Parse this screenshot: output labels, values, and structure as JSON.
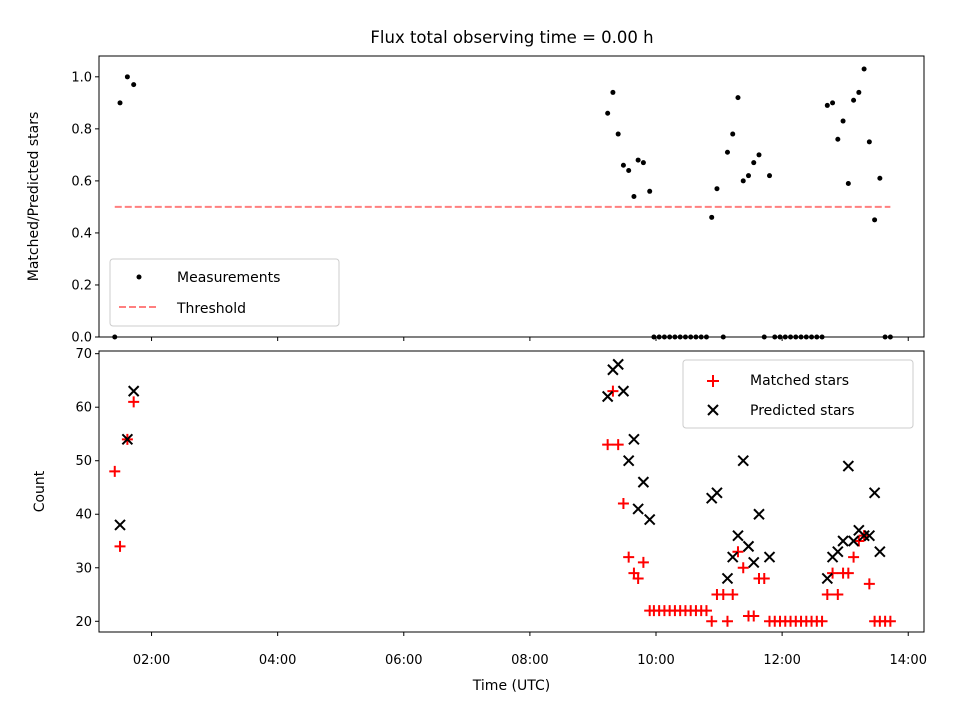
{
  "chart_data": [
    {
      "type": "scatter",
      "title": "Flux total observing time = 0.00 h",
      "xlabel": "",
      "ylabel": "Matched/Predicted stars",
      "xlim": [
        "01:10",
        "14:15"
      ],
      "ylim": [
        0,
        1.08
      ],
      "yticks": [
        "0.0",
        "0.2",
        "0.4",
        "0.6",
        "0.8",
        "1.0"
      ],
      "grid": false,
      "legend": "lower-left",
      "series": [
        {
          "name": "Measurements",
          "marker": "dot",
          "color": "#000000",
          "points": [
            [
              "01:25",
              0.0
            ],
            [
              "01:30",
              0.9
            ],
            [
              "01:37",
              1.0
            ],
            [
              "01:43",
              0.97
            ],
            [
              "09:14",
              0.86
            ],
            [
              "09:19",
              0.94
            ],
            [
              "09:24",
              0.78
            ],
            [
              "09:29",
              0.66
            ],
            [
              "09:34",
              0.64
            ],
            [
              "09:39",
              0.54
            ],
            [
              "09:43",
              0.68
            ],
            [
              "09:48",
              0.67
            ],
            [
              "09:54",
              0.56
            ],
            [
              "09:58",
              0.0
            ],
            [
              "10:03",
              0.0
            ],
            [
              "10:08",
              0.0
            ],
            [
              "10:13",
              0.0
            ],
            [
              "10:18",
              0.0
            ],
            [
              "10:23",
              0.0
            ],
            [
              "10:28",
              0.0
            ],
            [
              "10:33",
              0.0
            ],
            [
              "10:38",
              0.0
            ],
            [
              "10:43",
              0.0
            ],
            [
              "10:48",
              0.0
            ],
            [
              "10:53",
              0.46
            ],
            [
              "10:58",
              0.57
            ],
            [
              "11:04",
              0.0
            ],
            [
              "11:08",
              0.71
            ],
            [
              "11:13",
              0.78
            ],
            [
              "11:18",
              0.92
            ],
            [
              "11:23",
              0.6
            ],
            [
              "11:28",
              0.62
            ],
            [
              "11:33",
              0.67
            ],
            [
              "11:38",
              0.7
            ],
            [
              "11:43",
              0.0
            ],
            [
              "11:48",
              0.62
            ],
            [
              "11:53",
              0.0
            ],
            [
              "11:58",
              0.0
            ],
            [
              "12:03",
              0.0
            ],
            [
              "12:08",
              0.0
            ],
            [
              "12:13",
              0.0
            ],
            [
              "12:18",
              0.0
            ],
            [
              "12:23",
              0.0
            ],
            [
              "12:28",
              0.0
            ],
            [
              "12:33",
              0.0
            ],
            [
              "12:38",
              0.0
            ],
            [
              "12:43",
              0.89
            ],
            [
              "12:48",
              0.9
            ],
            [
              "12:53",
              0.76
            ],
            [
              "12:58",
              0.83
            ],
            [
              "13:03",
              0.59
            ],
            [
              "13:08",
              0.91
            ],
            [
              "13:13",
              0.94
            ],
            [
              "13:18",
              1.03
            ],
            [
              "13:23",
              0.75
            ],
            [
              "13:28",
              0.45
            ],
            [
              "13:33",
              0.61
            ],
            [
              "13:38",
              0.0
            ],
            [
              "13:43",
              0.0
            ]
          ]
        },
        {
          "name": "Threshold",
          "type": "line",
          "style": "dashed",
          "color": "#ff7f7f",
          "x": [
            "01:25",
            "13:43"
          ],
          "values": [
            0.5,
            0.5
          ]
        }
      ]
    },
    {
      "type": "scatter",
      "title": "",
      "xlabel": "Time (UTC)",
      "ylabel": "Count",
      "xlim": [
        "01:10",
        "14:15"
      ],
      "ylim": [
        18,
        70.5
      ],
      "xticks": [
        "02:00",
        "04:00",
        "06:00",
        "08:00",
        "10:00",
        "12:00",
        "14:00"
      ],
      "yticks": [
        "20",
        "30",
        "40",
        "50",
        "60",
        "70"
      ],
      "grid": false,
      "legend": "top-right",
      "series": [
        {
          "name": "Matched stars",
          "marker": "plus",
          "color": "#ff0000",
          "points": [
            [
              "01:25",
              48
            ],
            [
              "01:30",
              34
            ],
            [
              "01:37",
              54
            ],
            [
              "01:43",
              61
            ],
            [
              "09:14",
              53
            ],
            [
              "09:19",
              63
            ],
            [
              "09:24",
              53
            ],
            [
              "09:29",
              42
            ],
            [
              "09:34",
              32
            ],
            [
              "09:39",
              29
            ],
            [
              "09:43",
              28
            ],
            [
              "09:48",
              31
            ],
            [
              "09:54",
              22
            ],
            [
              "09:58",
              22
            ],
            [
              "10:03",
              22
            ],
            [
              "10:08",
              22
            ],
            [
              "10:13",
              22
            ],
            [
              "10:18",
              22
            ],
            [
              "10:23",
              22
            ],
            [
              "10:28",
              22
            ],
            [
              "10:33",
              22
            ],
            [
              "10:38",
              22
            ],
            [
              "10:43",
              22
            ],
            [
              "10:48",
              22
            ],
            [
              "10:53",
              20
            ],
            [
              "10:58",
              25
            ],
            [
              "11:04",
              25
            ],
            [
              "11:08",
              20
            ],
            [
              "11:13",
              25
            ],
            [
              "11:18",
              33
            ],
            [
              "11:23",
              30
            ],
            [
              "11:28",
              21
            ],
            [
              "11:33",
              21
            ],
            [
              "11:38",
              28
            ],
            [
              "11:43",
              28
            ],
            [
              "11:48",
              20
            ],
            [
              "11:53",
              20
            ],
            [
              "11:58",
              20
            ],
            [
              "12:03",
              20
            ],
            [
              "12:08",
              20
            ],
            [
              "12:13",
              20
            ],
            [
              "12:18",
              20
            ],
            [
              "12:23",
              20
            ],
            [
              "12:28",
              20
            ],
            [
              "12:33",
              20
            ],
            [
              "12:38",
              20
            ],
            [
              "12:43",
              25
            ],
            [
              "12:48",
              29
            ],
            [
              "12:53",
              25
            ],
            [
              "12:58",
              29
            ],
            [
              "13:03",
              29
            ],
            [
              "13:08",
              32
            ],
            [
              "13:13",
              35
            ],
            [
              "13:18",
              36
            ],
            [
              "13:23",
              27
            ],
            [
              "13:28",
              20
            ],
            [
              "13:33",
              20
            ],
            [
              "13:38",
              20
            ],
            [
              "13:43",
              20
            ]
          ]
        },
        {
          "name": "Predicted stars",
          "marker": "x",
          "color": "#000000",
          "points": [
            [
              "01:30",
              38
            ],
            [
              "01:37",
              54
            ],
            [
              "01:43",
              63
            ],
            [
              "09:14",
              62
            ],
            [
              "09:19",
              67
            ],
            [
              "09:24",
              68
            ],
            [
              "09:29",
              63
            ],
            [
              "09:34",
              50
            ],
            [
              "09:39",
              54
            ],
            [
              "09:43",
              41
            ],
            [
              "09:48",
              46
            ],
            [
              "09:54",
              39
            ],
            [
              "10:53",
              43
            ],
            [
              "10:58",
              44
            ],
            [
              "11:08",
              28
            ],
            [
              "11:13",
              32
            ],
            [
              "11:18",
              36
            ],
            [
              "11:23",
              50
            ],
            [
              "11:28",
              34
            ],
            [
              "11:33",
              31
            ],
            [
              "11:38",
              40
            ],
            [
              "11:48",
              32
            ],
            [
              "12:43",
              28
            ],
            [
              "12:48",
              32
            ],
            [
              "12:53",
              33
            ],
            [
              "12:58",
              35
            ],
            [
              "13:03",
              49
            ],
            [
              "13:08",
              35
            ],
            [
              "13:13",
              37
            ],
            [
              "13:18",
              36
            ],
            [
              "13:23",
              36
            ],
            [
              "13:28",
              44
            ],
            [
              "13:33",
              33
            ]
          ]
        }
      ]
    }
  ]
}
